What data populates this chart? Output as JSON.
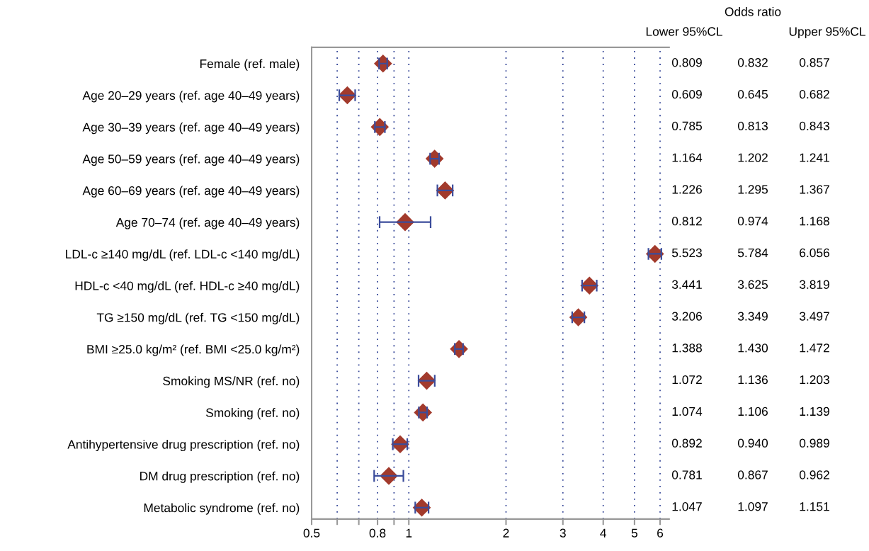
{
  "chart_data": [
    {
      "type": "scatter",
      "orientation": "horizontal",
      "categories": [
        "Female (ref. male)",
        "Age 20–29 years (ref. age 40–49 years)",
        "Age 30–39 years (ref. age 40–49 years)",
        "Age 50–59 years (ref. age 40–49 years)",
        "Age 60–69 years (ref. age 40–49 years)",
        "Age 70–74 (ref. age 40–49 years)",
        "LDL-c ≥140 mg/dL (ref. LDL-c <140 mg/dL)",
        "HDL-c <40 mg/dL (ref. HDL-c ≥40 mg/dL)",
        "TG ≥150 mg/dL (ref. TG <150 mg/dL)",
        "BMI ≥25.0 kg/m² (ref. BMI <25.0 kg/m²)",
        "Smoking MS/NR (ref. no)",
        "Smoking (ref. no)",
        "Antihypertensive drug prescription (ref. no)",
        "DM drug prescription (ref. no)",
        "Metabolic syndrome (ref. no)"
      ],
      "series": [
        {
          "color": "#a23a2c",
          "values": [
            0.832,
            0.645,
            0.813,
            1.202,
            1.295,
            0.974,
            5.784,
            3.625,
            3.349,
            1.43,
            1.136,
            1.106,
            0.94,
            0.867,
            1.097
          ],
          "errors": [
            [
              0.809,
              0.857
            ],
            [
              0.609,
              0.682
            ],
            [
              0.785,
              0.843
            ],
            [
              1.164,
              1.241
            ],
            [
              1.226,
              1.367
            ],
            [
              0.812,
              1.168
            ],
            [
              5.523,
              6.056
            ],
            [
              3.441,
              3.819
            ],
            [
              3.206,
              3.497
            ],
            [
              1.388,
              1.472
            ],
            [
              1.072,
              1.203
            ],
            [
              1.074,
              1.139
            ],
            [
              0.892,
              0.989
            ],
            [
              0.781,
              0.962
            ],
            [
              1.047,
              1.151
            ]
          ]
        }
      ],
      "log": "x",
      "xlim": [
        0.5,
        6.4
      ],
      "xticks": [
        0.5,
        {
          "value": 0.6,
          "label": null
        },
        {
          "value": 0.7,
          "label": null
        },
        0.8,
        {
          "value": 0.9,
          "label": null
        },
        1,
        2,
        3,
        4,
        5,
        6
      ],
      "grid": "x",
      "marker": "diamond"
    },
    {
      "type": "other",
      "annotations": [
        "Odds ratio",
        "Lower 95%CL",
        "Upper 95%CL",
        "0.809",
        "0.832",
        "0.857",
        "0.609",
        "0.645",
        "0.682",
        "0.785",
        "0.813",
        "0.843",
        "1.164",
        "1.202",
        "1.241",
        "1.226",
        "1.295",
        "1.367",
        "0.812",
        "0.974",
        "1.168",
        "5.523",
        "5.784",
        "6.056",
        "3.441",
        "3.625",
        "3.819",
        "3.206",
        "3.349",
        "3.497",
        "1.388",
        "1.430",
        "1.472",
        "1.072",
        "1.136",
        "1.203",
        "1.074",
        "1.106",
        "1.139",
        "0.892",
        "0.940",
        "0.989",
        "0.781",
        "0.867",
        "0.962",
        "1.047",
        "1.097",
        "1.151"
      ]
    }
  ]
}
